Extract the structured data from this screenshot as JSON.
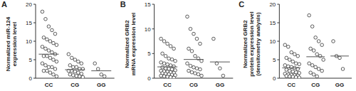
{
  "chart_data": [
    {
      "type": "scatter",
      "title": "A",
      "ylabel": [
        "Normalized miR-124",
        "expression level"
      ],
      "categories": [
        "CC",
        "CG",
        "GG"
      ],
      "values": [
        [
          18,
          16,
          14,
          13,
          12,
          11,
          10.5,
          10,
          9.5,
          9,
          8.5,
          8,
          7.5,
          7,
          6.5,
          6,
          6,
          5.5,
          5,
          4.5,
          4,
          3.5,
          3,
          3,
          2.5,
          2,
          2,
          1.5,
          1,
          0.5
        ],
        [
          6.5,
          5.5,
          5,
          4.5,
          4,
          3.5,
          3,
          3,
          2.5,
          2.5,
          2,
          2,
          1.8,
          1.5,
          1.2,
          1,
          0.8,
          0.6,
          0.5,
          0.3
        ],
        [
          4,
          2.5,
          1,
          0.5
        ]
      ],
      "means": [
        6.5,
        2.3,
        2
      ],
      "ylim": [
        0,
        20
      ],
      "yticks": [
        0,
        5,
        10,
        15,
        20
      ],
      "marker": "open-circle"
    },
    {
      "type": "scatter",
      "title": "B",
      "ylabel": [
        "Normalized GRB2",
        "mRNA expression level"
      ],
      "categories": [
        "CC",
        "CG",
        "GG"
      ],
      "values": [
        [
          8,
          7.5,
          7,
          6.5,
          6,
          5,
          4.5,
          4,
          3.8,
          3.5,
          3.2,
          3,
          2.8,
          2.6,
          2.4,
          2.2,
          2,
          1.9,
          1.8,
          1.6,
          1.5,
          1.4,
          1.3,
          1.2,
          1.1,
          1,
          0.9,
          0.8,
          0.7,
          0.6,
          0.5,
          0.4,
          0.3,
          0.2,
          0.1
        ],
        [
          12.5,
          10,
          9,
          8,
          7,
          6,
          5.5,
          4.5,
          4,
          3.5,
          3,
          2.5,
          2.2,
          2,
          1.8,
          1.5,
          1.2,
          1,
          0.8,
          0.5
        ],
        [
          8,
          3,
          2,
          0.5
        ]
      ],
      "means": [
        2.3,
        3.8,
        3.3
      ],
      "ylim": [
        0,
        15
      ],
      "yticks": [
        0,
        5,
        10,
        15
      ],
      "marker": "open-circle"
    },
    {
      "type": "scatter",
      "title": "C",
      "ylabel": [
        "Normalized GRB2",
        "protein expression level",
        "(densitometry analysis)"
      ],
      "categories": [
        "CC",
        "CG",
        "GG"
      ],
      "values": [
        [
          9,
          8.5,
          7,
          6.5,
          6,
          5.5,
          5,
          4.5,
          4,
          3.8,
          3.5,
          3.2,
          3,
          2.8,
          2.5,
          2.3,
          2,
          1.8,
          1.6,
          1.4,
          1.2,
          1,
          0.9,
          0.8,
          0.7,
          0.6,
          0.5,
          0.4,
          0.3,
          0.2
        ],
        [
          17,
          14,
          11,
          10,
          9,
          8,
          7.5,
          6.5,
          6,
          5,
          4,
          3.5,
          3,
          2.5,
          2,
          1.5,
          1,
          0.5
        ],
        [
          10,
          6,
          5.5,
          2.5
        ]
      ],
      "means": [
        2.8,
        5.8,
        6
      ],
      "ylim": [
        0,
        20
      ],
      "yticks": [
        0,
        5,
        10,
        15,
        20
      ],
      "marker": "open-circle"
    }
  ]
}
